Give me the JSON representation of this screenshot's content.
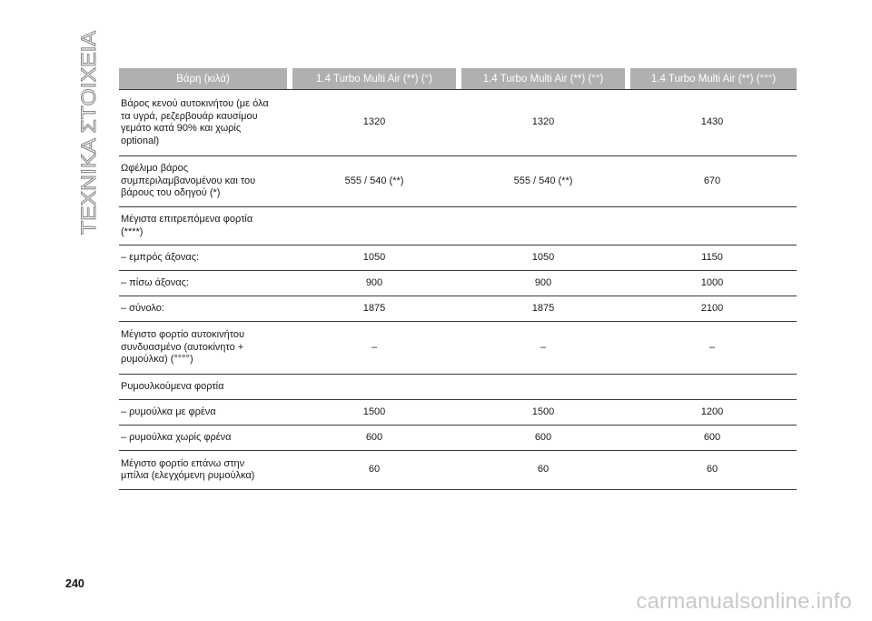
{
  "section_title": "ΤΕΧΝΙΚΑ ΣΤΟΙΧΕΙΑ",
  "page_number": "240",
  "watermark": "carmanualsonline.info",
  "table": {
    "headers": [
      "Βάρη (κιλά)",
      "1.4 Turbo Multi Air (**) (°)",
      "1.4 Turbo Multi Air (**) (°°)",
      "1.4 Turbo Multi Air (**) (°°°)"
    ],
    "rows": [
      {
        "label": [
          "Βάρος κενού αυτοκινήτου (με όλα",
          "τα υγρά, ρεζερβουάρ καυσίμου",
          "γεμάτο κατά 90% και χωρίς",
          "optional)"
        ],
        "values": [
          "1320",
          "1320",
          "1430"
        ]
      },
      {
        "label": [
          "Ωφέλιμο βάρος",
          "συμπεριλαμβανομένου και του",
          "βάρους του οδηγού (*)"
        ],
        "values": [
          "555 / 540 (**)",
          "555 / 540 (**)",
          "670"
        ]
      },
      {
        "label": [
          "Μέγιστα επιτρεπόμενα φορτία",
          "(****)"
        ],
        "values": [
          "",
          "",
          ""
        ]
      },
      {
        "label": [
          "– εμπρός άξονας:"
        ],
        "values": [
          "1050",
          "1050",
          "1150"
        ]
      },
      {
        "label": [
          "– πίσω άξονας:"
        ],
        "values": [
          "900",
          "900",
          "1000"
        ]
      },
      {
        "label": [
          "– σύνολο:"
        ],
        "values": [
          "1875",
          "1875",
          "2100"
        ]
      },
      {
        "label": [
          "Μέγιστο φορτίο αυτοκινήτου",
          "συνδυασμένο (αυτοκίνητο +",
          "ρυμούλκα) (°°°°)"
        ],
        "values": [
          "–",
          "–",
          "–"
        ]
      },
      {
        "label": [
          "Ρυμουλκούμενα φορτία"
        ],
        "values": [
          "",
          "",
          ""
        ]
      },
      {
        "label": [
          "– ρυμούλκα με φρένα"
        ],
        "values": [
          "1500",
          "1500",
          "1200"
        ]
      },
      {
        "label": [
          "– ρυμούλκα χωρίς φρένα"
        ],
        "values": [
          "600",
          "600",
          "600"
        ]
      },
      {
        "label": [
          "Μέγιστο φορτίο επάνω στην",
          "μπίλια (ελεγχόμενη ρυμούλκα)"
        ],
        "values": [
          "60",
          "60",
          "60"
        ]
      }
    ]
  }
}
